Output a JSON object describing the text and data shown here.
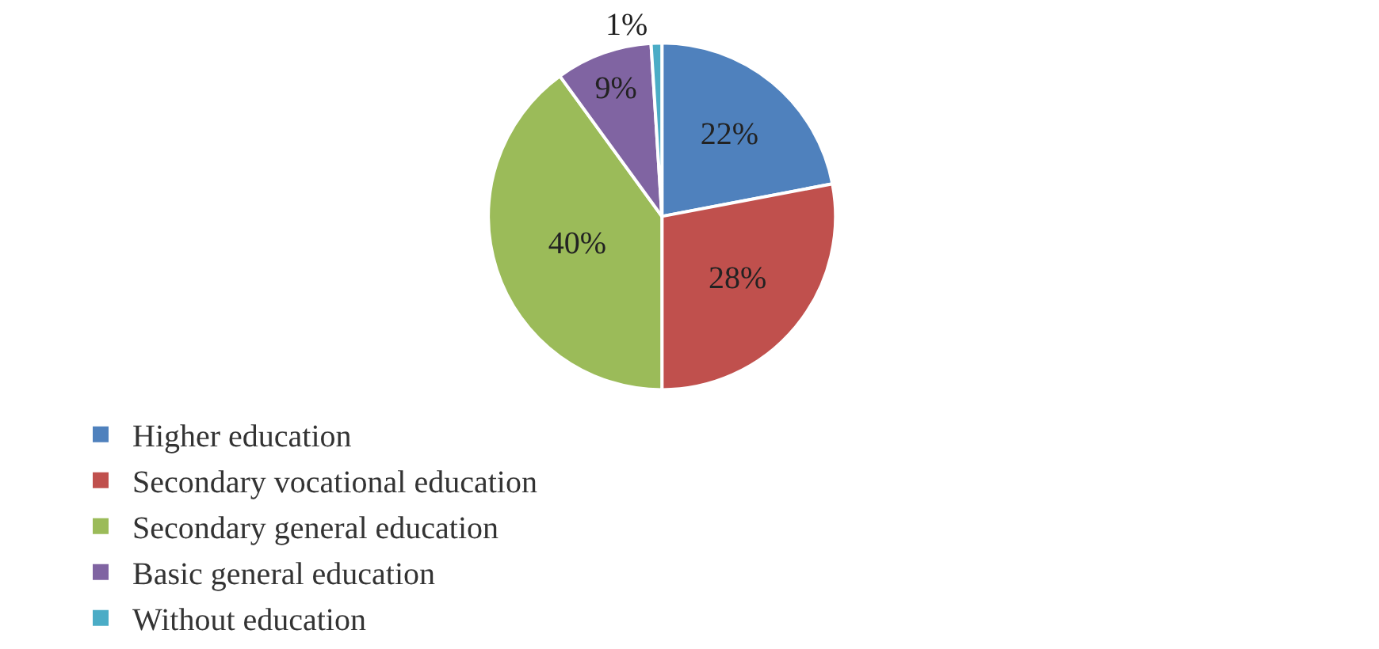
{
  "chart_data": {
    "type": "pie",
    "categories": [
      "Higher education",
      "Secondary vocational education",
      "Secondary general education",
      "Basic general education",
      "Without education"
    ],
    "values": [
      22,
      28,
      40,
      9,
      1
    ],
    "value_labels": [
      "22%",
      "28%",
      "40%",
      "9%",
      "1%"
    ],
    "colors": [
      "#4f81bd",
      "#c0504d",
      "#9bbb59",
      "#8064a2",
      "#4bacc6"
    ],
    "legend": "bottom"
  }
}
